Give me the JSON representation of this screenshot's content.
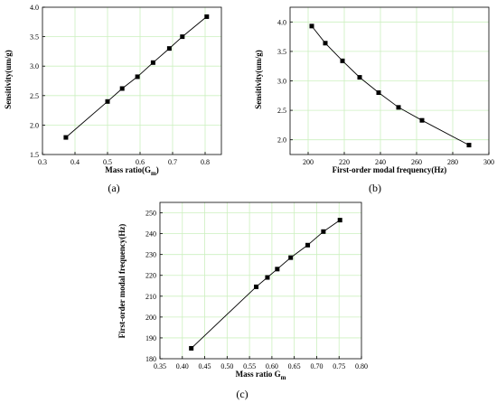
{
  "chart_data": [
    {
      "id": "a",
      "type": "line",
      "panel_label": "(a)",
      "xlabel": "Mass ratio(G",
      "xlabel_sub": "m",
      "xlabel_suffix": ")",
      "ylabel": "Sensitivity(um/g)",
      "xlim": [
        0.3,
        0.85
      ],
      "ylim": [
        1.5,
        4.0
      ],
      "xticks": [
        0.3,
        0.4,
        0.5,
        0.6,
        0.7,
        0.8
      ],
      "xtick_labels": [
        "0.3",
        "0.4",
        "0.5",
        "0.6",
        "0.7",
        "0.8"
      ],
      "yticks": [
        1.5,
        2.0,
        2.5,
        3.0,
        3.5,
        4.0
      ],
      "ytick_labels": [
        "1.5",
        "2.0",
        "2.5",
        "3.0",
        "3.5",
        "4.0"
      ],
      "grid": true,
      "series": [
        {
          "x": [
            0.372,
            0.5,
            0.545,
            0.592,
            0.64,
            0.69,
            0.73,
            0.805
          ],
          "y": [
            1.79,
            2.4,
            2.62,
            2.82,
            3.06,
            3.3,
            3.5,
            3.84
          ]
        }
      ]
    },
    {
      "id": "b",
      "type": "line",
      "panel_label": "(b)",
      "xlabel": "First-order modal frequency(Hz)",
      "ylabel": "Sensitivity(um/g)",
      "xlim": [
        190,
        300
      ],
      "ylim": [
        1.75,
        4.25
      ],
      "xticks": [
        200,
        220,
        240,
        260,
        280,
        300
      ],
      "xtick_labels": [
        "200",
        "220",
        "240",
        "260",
        "280",
        "300"
      ],
      "yticks": [
        2.0,
        2.5,
        3.0,
        3.5,
        4.0
      ],
      "ytick_labels": [
        "2.0",
        "2.5",
        "3.0",
        "3.5",
        "4.0"
      ],
      "grid": true,
      "series": [
        {
          "x": [
            202,
            209.5,
            219,
            228.5,
            239,
            250,
            263,
            289
          ],
          "y": [
            3.93,
            3.64,
            3.34,
            3.06,
            2.8,
            2.55,
            2.33,
            1.91
          ]
        }
      ]
    },
    {
      "id": "c",
      "type": "line",
      "panel_label": "(c)",
      "xlabel": "Mass ratio G",
      "xlabel_sub": "m",
      "xlabel_suffix": "",
      "ylabel": "First-order modal frequency(Hz)",
      "xlim": [
        0.35,
        0.8
      ],
      "ylim": [
        180,
        255
      ],
      "xticks": [
        0.35,
        0.4,
        0.45,
        0.5,
        0.55,
        0.6,
        0.65,
        0.7,
        0.75,
        0.8
      ],
      "xtick_labels": [
        "0.35",
        "0.40",
        "0.45",
        "0.50",
        "0.55",
        "0.60",
        "0.65",
        "0.70",
        "0.75",
        "0.80"
      ],
      "yticks": [
        180,
        190,
        200,
        210,
        220,
        230,
        240,
        250
      ],
      "ytick_labels": [
        "180",
        "190",
        "200",
        "210",
        "220",
        "230",
        "240",
        "250"
      ],
      "grid": true,
      "series": [
        {
          "x": [
            0.42,
            0.565,
            0.59,
            0.612,
            0.642,
            0.68,
            0.715,
            0.752
          ],
          "y": [
            185,
            214.5,
            219,
            223,
            228.5,
            234.5,
            241,
            246.5
          ]
        }
      ]
    }
  ]
}
